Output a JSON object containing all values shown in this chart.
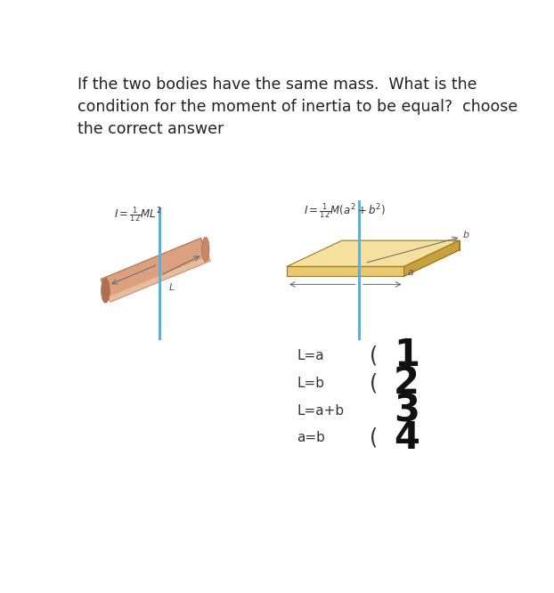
{
  "title_text": "If the two bodies have the same mass.  What is the\ncondition for the moment of inertia to be equal?  choose\nthe correct answer",
  "title_fontsize": 12.5,
  "title_color": "#222222",
  "options": [
    {
      "label": "L=a",
      "paren": "(",
      "num": "1"
    },
    {
      "label": "L=b",
      "paren": "(",
      "num": "2"
    },
    {
      "label": "L=a+b",
      "paren": "",
      "num": "3"
    },
    {
      "label": "a=b",
      "paren": "(",
      "num": "4"
    }
  ],
  "bg_color": "#ffffff",
  "rod_color_light": "#dba080",
  "rod_color_mid": "#c88868",
  "rod_color_dark": "#b07050",
  "plate_color_top": "#f5e0a0",
  "plate_color_front": "#e8c870",
  "plate_color_side": "#c8a040",
  "plate_color_bottom": "#b89030",
  "axis_color": "#5ab0d8"
}
